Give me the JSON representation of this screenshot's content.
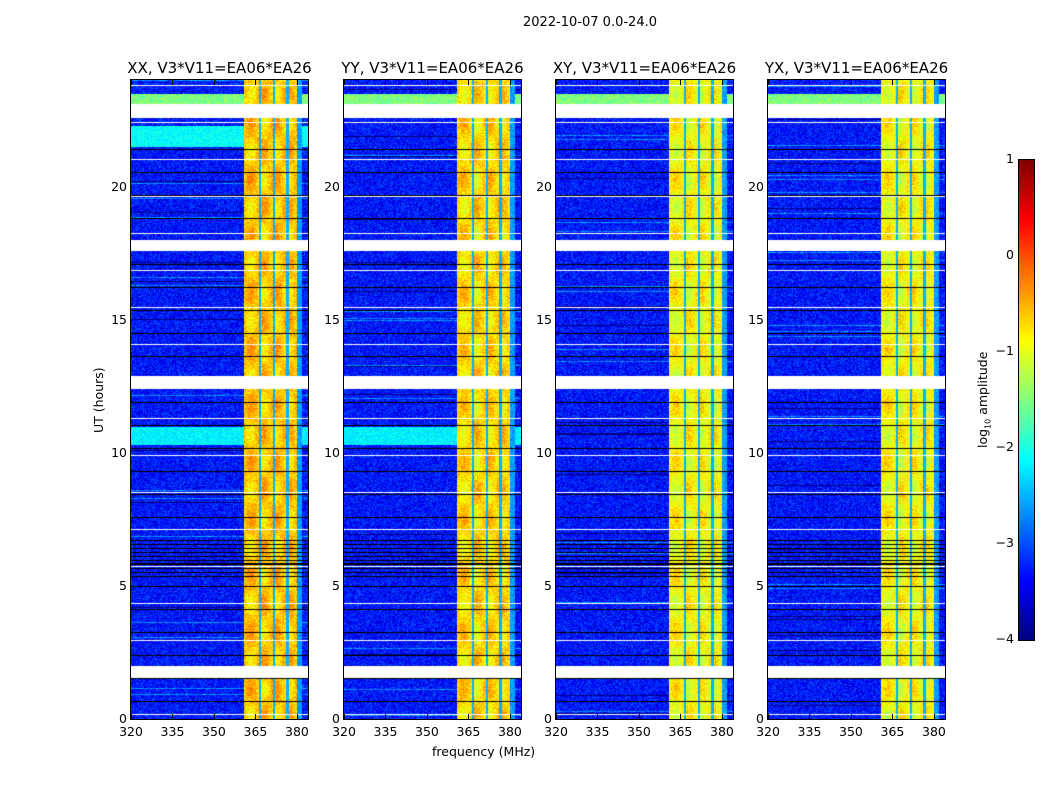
{
  "suptitle": "2022-10-07 0.0-24.0",
  "chart_data": {
    "type": "heatmap",
    "title": "2022-10-07 0.0-24.0",
    "xlabel": "frequency (MHz)",
    "ylabel": "UT (hours)",
    "xlim": [
      320,
      384
    ],
    "ylim": [
      0,
      24
    ],
    "xticks": [
      "320",
      "335",
      "350",
      "365",
      "380"
    ],
    "yticks": [
      "0",
      "5",
      "10",
      "15",
      "20"
    ],
    "panels": [
      {
        "title": "XX, V3*V11=EA06*EA26",
        "band_level": -0.6
      },
      {
        "title": "YY, V3*V11=EA06*EA26",
        "band_level": -0.7
      },
      {
        "title": "XY, V3*V11=EA06*EA26",
        "band_level": -0.9
      },
      {
        "title": "YX, V3*V11=EA06*EA26",
        "band_level": -0.9
      }
    ],
    "rfi_band_mhz": [
      360.5,
      380
    ],
    "background_level": -3.3,
    "flagged_hours": [
      [
        22.6,
        23.1
      ],
      [
        17.6,
        18.0
      ],
      [
        12.4,
        12.9
      ],
      [
        1.6,
        2.0
      ]
    ],
    "colorbar": {
      "label": "log10 amplitude",
      "label_main": "log",
      "label_sub": "10",
      "label_rest": " amplitude",
      "range": [
        -4,
        1
      ],
      "ticks": [
        "1",
        "0",
        "−1",
        "−2",
        "−3",
        "−4"
      ],
      "colormap": "jet"
    }
  }
}
